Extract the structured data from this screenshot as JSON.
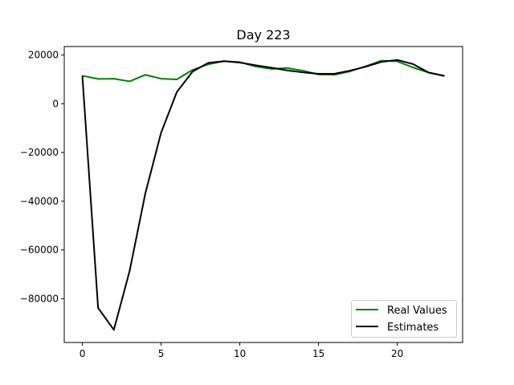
{
  "chart_data": {
    "type": "line",
    "title": "Day 223",
    "xlabel": "",
    "ylabel": "",
    "xlim": [
      -1.15,
      24.15
    ],
    "ylim": [
      -98000,
      23500
    ],
    "xticks": [
      0,
      5,
      10,
      15,
      20
    ],
    "yticks": [
      20000,
      0,
      -20000,
      -40000,
      -60000,
      -80000
    ],
    "grid": false,
    "legend_position": "lower-right",
    "x": [
      0,
      1,
      2,
      3,
      4,
      5,
      6,
      7,
      8,
      9,
      10,
      11,
      12,
      13,
      14,
      15,
      16,
      17,
      18,
      19,
      20,
      21,
      22,
      23
    ],
    "series": [
      {
        "name": "Real Values",
        "color": "#008000",
        "values": [
          11500,
          10200,
          10300,
          9200,
          11900,
          10300,
          10000,
          13900,
          16200,
          17500,
          17100,
          15300,
          14300,
          14700,
          13600,
          12000,
          11900,
          13300,
          15400,
          17700,
          17400,
          14900,
          12800,
          11500
        ]
      },
      {
        "name": "Estimates",
        "color": "#000000",
        "values": [
          11500,
          -83800,
          -92800,
          -68700,
          -36800,
          -11900,
          4800,
          13200,
          16800,
          17500,
          16900,
          15800,
          14800,
          13700,
          12900,
          12300,
          12300,
          13600,
          15200,
          17200,
          18000,
          16300,
          12800,
          11400
        ]
      }
    ]
  }
}
